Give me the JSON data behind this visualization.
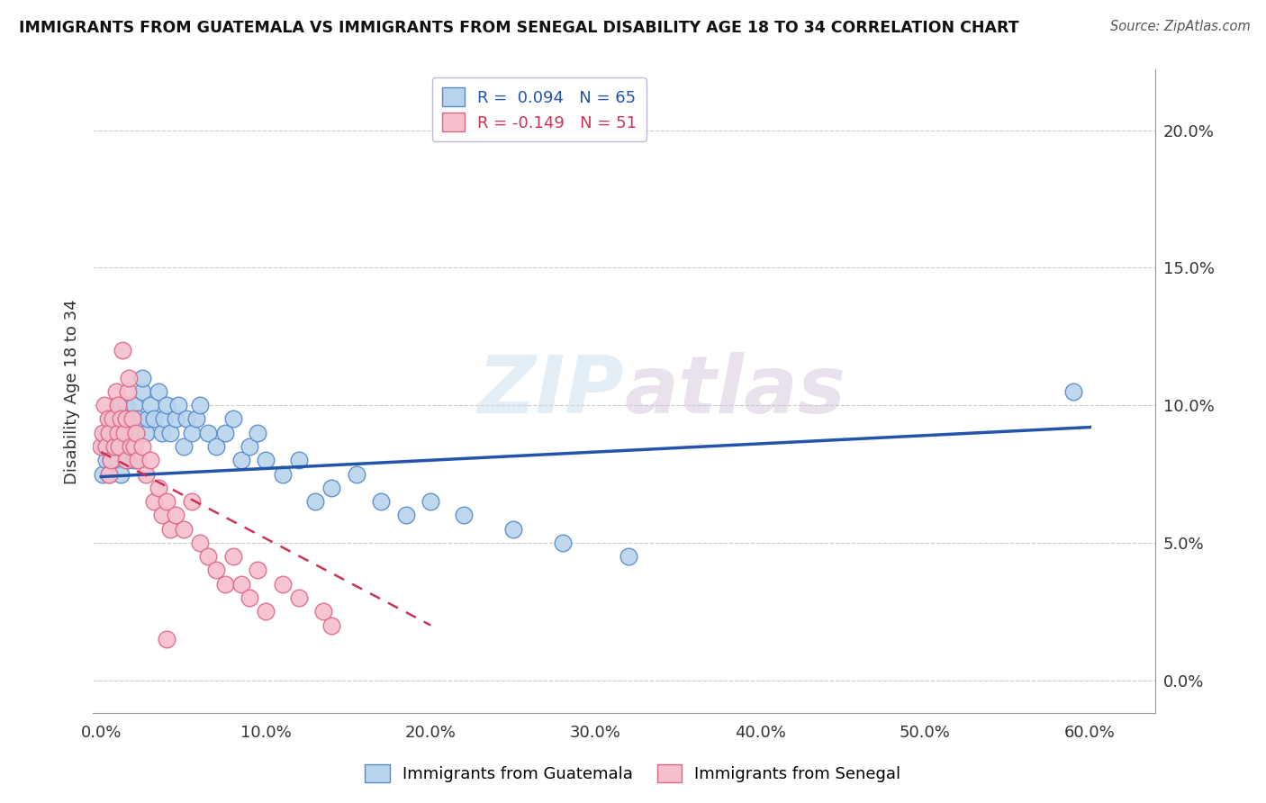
{
  "title": "IMMIGRANTS FROM GUATEMALA VS IMMIGRANTS FROM SENEGAL DISABILITY AGE 18 TO 34 CORRELATION CHART",
  "source": "Source: ZipAtlas.com",
  "xlabel_ticks": [
    "0.0%",
    "10.0%",
    "20.0%",
    "30.0%",
    "40.0%",
    "50.0%",
    "60.0%"
  ],
  "xlabel_vals": [
    0.0,
    0.1,
    0.2,
    0.3,
    0.4,
    0.5,
    0.6
  ],
  "ylabel_ticks": [
    "0.0%",
    "5.0%",
    "10.0%",
    "15.0%",
    "20.0%"
  ],
  "ylabel_vals": [
    0.0,
    0.05,
    0.1,
    0.15,
    0.2
  ],
  "ylabel_label": "Disability Age 18 to 34",
  "xlim": [
    -0.005,
    0.64
  ],
  "ylim": [
    -0.012,
    0.222
  ],
  "watermark_zip": "ZIP",
  "watermark_atlas": "atlas",
  "guatemala_color": "#b8d4ed",
  "guatemala_edge": "#5588cc",
  "senegal_color": "#f5bfcc",
  "senegal_edge": "#dd6688",
  "trend_guatemala_color": "#2255aa",
  "trend_senegal_color": "#cc3355",
  "legend_label_g": "R =  0.094   N = 65",
  "legend_label_s": "R = -0.149   N = 51",
  "guatemala_points_x": [
    0.001,
    0.002,
    0.003,
    0.004,
    0.005,
    0.005,
    0.006,
    0.007,
    0.008,
    0.009,
    0.01,
    0.01,
    0.011,
    0.012,
    0.013,
    0.014,
    0.015,
    0.015,
    0.016,
    0.017,
    0.018,
    0.019,
    0.02,
    0.02,
    0.021,
    0.022,
    0.025,
    0.025,
    0.027,
    0.028,
    0.03,
    0.032,
    0.035,
    0.037,
    0.038,
    0.04,
    0.042,
    0.045,
    0.047,
    0.05,
    0.052,
    0.055,
    0.058,
    0.06,
    0.065,
    0.07,
    0.075,
    0.08,
    0.085,
    0.09,
    0.095,
    0.1,
    0.11,
    0.12,
    0.13,
    0.14,
    0.155,
    0.17,
    0.185,
    0.2,
    0.22,
    0.25,
    0.28,
    0.32,
    0.59
  ],
  "guatemala_points_y": [
    0.075,
    0.085,
    0.08,
    0.09,
    0.075,
    0.095,
    0.08,
    0.085,
    0.09,
    0.095,
    0.08,
    0.1,
    0.085,
    0.075,
    0.09,
    0.095,
    0.085,
    0.1,
    0.08,
    0.09,
    0.095,
    0.085,
    0.08,
    0.1,
    0.09,
    0.095,
    0.105,
    0.11,
    0.09,
    0.095,
    0.1,
    0.095,
    0.105,
    0.09,
    0.095,
    0.1,
    0.09,
    0.095,
    0.1,
    0.085,
    0.095,
    0.09,
    0.095,
    0.1,
    0.09,
    0.085,
    0.09,
    0.095,
    0.08,
    0.085,
    0.09,
    0.08,
    0.075,
    0.08,
    0.065,
    0.07,
    0.075,
    0.065,
    0.06,
    0.065,
    0.06,
    0.055,
    0.05,
    0.045,
    0.105
  ],
  "senegal_points_x": [
    0.0,
    0.001,
    0.002,
    0.003,
    0.004,
    0.005,
    0.005,
    0.006,
    0.007,
    0.008,
    0.009,
    0.01,
    0.01,
    0.011,
    0.012,
    0.013,
    0.014,
    0.015,
    0.015,
    0.016,
    0.017,
    0.018,
    0.019,
    0.02,
    0.021,
    0.022,
    0.025,
    0.027,
    0.03,
    0.032,
    0.035,
    0.037,
    0.04,
    0.042,
    0.045,
    0.05,
    0.055,
    0.06,
    0.065,
    0.07,
    0.075,
    0.08,
    0.085,
    0.09,
    0.095,
    0.1,
    0.11,
    0.12,
    0.135,
    0.14,
    0.04
  ],
  "senegal_points_y": [
    0.085,
    0.09,
    0.1,
    0.085,
    0.095,
    0.075,
    0.09,
    0.08,
    0.095,
    0.085,
    0.105,
    0.09,
    0.1,
    0.085,
    0.095,
    0.12,
    0.09,
    0.08,
    0.095,
    0.105,
    0.11,
    0.085,
    0.095,
    0.085,
    0.09,
    0.08,
    0.085,
    0.075,
    0.08,
    0.065,
    0.07,
    0.06,
    0.065,
    0.055,
    0.06,
    0.055,
    0.065,
    0.05,
    0.045,
    0.04,
    0.035,
    0.045,
    0.035,
    0.03,
    0.04,
    0.025,
    0.035,
    0.03,
    0.025,
    0.02,
    0.015
  ]
}
